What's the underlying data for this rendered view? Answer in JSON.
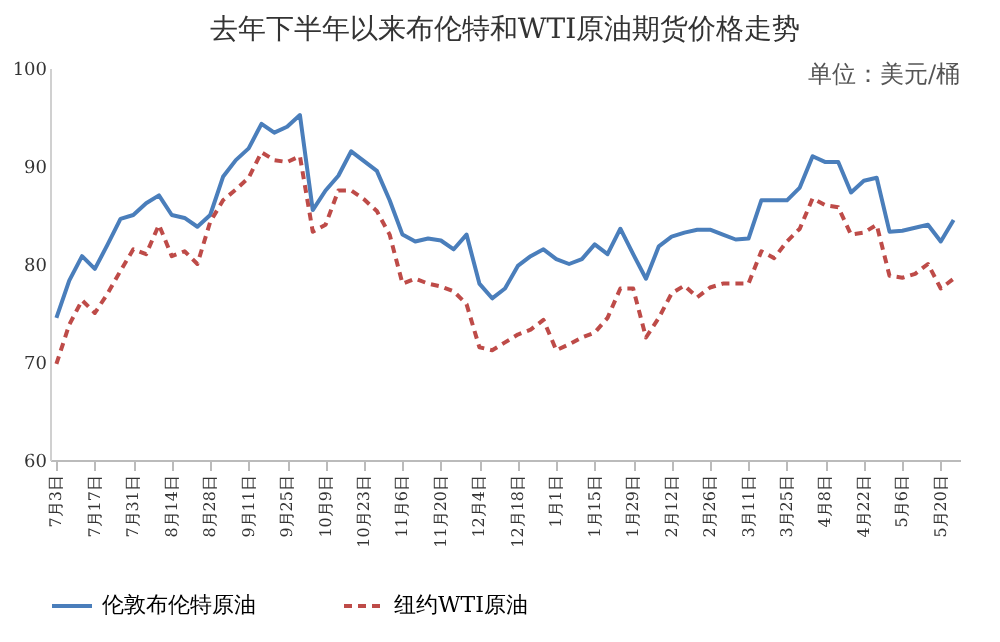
{
  "chart_data": {
    "type": "line",
    "title": "去年下半年以来布伦特和WTI原油期货价格走势",
    "categories": [
      "7月3日",
      null,
      null,
      "7月17日",
      null,
      null,
      "7月31日",
      null,
      null,
      "8月14日",
      null,
      null,
      "8月28日",
      null,
      null,
      "9月11日",
      null,
      null,
      "9月25日",
      null,
      null,
      "10月9日",
      null,
      null,
      "10月23日",
      null,
      null,
      "11月6日",
      null,
      null,
      "11月20日",
      null,
      null,
      "12月4日",
      null,
      null,
      "12月18日",
      null,
      null,
      "1月1日",
      null,
      null,
      "1月15日",
      null,
      null,
      "1月29日",
      null,
      null,
      "2月12日",
      null,
      null,
      "2月26日",
      null,
      null,
      "3月11日",
      null,
      null,
      "3月25日",
      null,
      null,
      "4月8日",
      null,
      null,
      "4月22日",
      null,
      null,
      "5月6日",
      null,
      null,
      "5月20日",
      null
    ],
    "series": [
      {
        "name": "伦敦布伦特原油",
        "color": "#4a7ebb",
        "line_style": "solid",
        "values": [
          74.5,
          78.3,
          80.8,
          79.5,
          82,
          84.6,
          85,
          86.2,
          87,
          85,
          84.7,
          83.8,
          85,
          88.9,
          90.6,
          91.8,
          94.3,
          93.4,
          94,
          95.2,
          85.5,
          87.5,
          89,
          91.5,
          90.5,
          89.5,
          86.5,
          83,
          82.3,
          82.6,
          82.4,
          81.5,
          83,
          78,
          76.5,
          77.5,
          79.8,
          80.8,
          81.5,
          80.5,
          80,
          80.5,
          82,
          81,
          83.6,
          81,
          78.5,
          81.8,
          82.8,
          83.2,
          83.5,
          83.5,
          83,
          82.5,
          82.6,
          86.5,
          86.5,
          86.5,
          87.8,
          91,
          90.4,
          90.4,
          87.3,
          88.5,
          88.8,
          83.3,
          83.4,
          83.7,
          84,
          82.3,
          84.5
        ]
      },
      {
        "name": "纽约WTI原油",
        "color": "#be4b48",
        "line_style": "dashed",
        "values": [
          69.8,
          73.8,
          76.3,
          75,
          77,
          79.3,
          81.5,
          81,
          84,
          80.8,
          81.3,
          80,
          84.3,
          86.5,
          87.6,
          88.8,
          91.4,
          90.6,
          90.4,
          91,
          83.3,
          84,
          87.5,
          87.5,
          86.6,
          85.4,
          83,
          78,
          78.5,
          78,
          77.7,
          77.2,
          75.9,
          71.5,
          71.2,
          72,
          72.8,
          73.3,
          74.3,
          71.2,
          71.8,
          72.5,
          73,
          74.5,
          77.5,
          77.5,
          72.5,
          74.5,
          77,
          77.8,
          76.6,
          77.6,
          78,
          78,
          78,
          81.3,
          80.6,
          82.3,
          83.6,
          86.7,
          86,
          85.8,
          83,
          83.2,
          84,
          78.8,
          78.6,
          79,
          80,
          77.5,
          78.5
        ]
      }
    ],
    "ylim": [
      60,
      100
    ],
    "yticks": [
      60,
      70,
      80,
      90,
      100
    ],
    "grid": false,
    "legend": "bottom",
    "marker": "none",
    "annotations": [
      "单位：美元/桶"
    ]
  }
}
